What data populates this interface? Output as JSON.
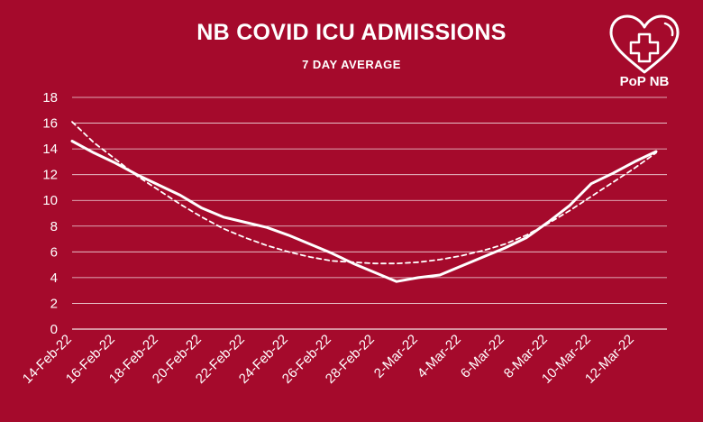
{
  "chart_data": {
    "type": "line",
    "title": "NB COVID ICU ADMISSIONS",
    "subtitle": "7 DAY AVERAGE",
    "xlabel": "",
    "ylabel": "",
    "ylim": [
      0,
      18
    ],
    "yticks": [
      0,
      2,
      4,
      6,
      8,
      10,
      12,
      14,
      16,
      18
    ],
    "grid": true,
    "x_tick_labels": [
      "14-Feb-22",
      "16-Feb-22",
      "18-Feb-22",
      "20-Feb-22",
      "22-Feb-22",
      "24-Feb-22",
      "26-Feb-22",
      "28-Feb-22",
      "2-Mar-22",
      "4-Mar-22",
      "6-Mar-22",
      "8-Mar-22",
      "10-Mar-22",
      "12-Mar-22"
    ],
    "x": [
      "14-Feb-22",
      "15-Feb-22",
      "16-Feb-22",
      "17-Feb-22",
      "18-Feb-22",
      "19-Feb-22",
      "20-Feb-22",
      "21-Feb-22",
      "22-Feb-22",
      "23-Feb-22",
      "24-Feb-22",
      "25-Feb-22",
      "26-Feb-22",
      "27-Feb-22",
      "28-Feb-22",
      "1-Mar-22",
      "2-Mar-22",
      "3-Mar-22",
      "4-Mar-22",
      "5-Mar-22",
      "6-Mar-22",
      "7-Mar-22",
      "8-Mar-22",
      "9-Mar-22",
      "10-Mar-22",
      "11-Mar-22",
      "12-Mar-22",
      "13-Mar-22"
    ],
    "series": [
      {
        "style": "solid",
        "values": [
          14.6,
          13.7,
          12.9,
          12.0,
          11.2,
          10.4,
          9.4,
          8.7,
          8.3,
          7.9,
          7.3,
          6.6,
          5.9,
          5.1,
          4.4,
          3.7,
          4.0,
          4.2,
          4.9,
          5.6,
          6.3,
          7.1,
          8.3,
          9.6,
          11.3,
          12.1,
          13.0,
          13.8
        ]
      },
      {
        "style": "dashed",
        "values": [
          16.1,
          14.5,
          13.2,
          11.9,
          10.8,
          9.7,
          8.7,
          7.8,
          7.1,
          6.5,
          6.0,
          5.6,
          5.3,
          5.2,
          5.1,
          5.1,
          5.2,
          5.4,
          5.7,
          6.1,
          6.6,
          7.3,
          8.2,
          9.2,
          10.3,
          11.4,
          12.5,
          13.7
        ]
      }
    ]
  },
  "logo": {
    "text": "PoP NB",
    "icon": "heart-with-cross-icon"
  },
  "colors": {
    "background": "#a50a2c",
    "foreground": "#ffffff",
    "grid": "#ffffff"
  }
}
